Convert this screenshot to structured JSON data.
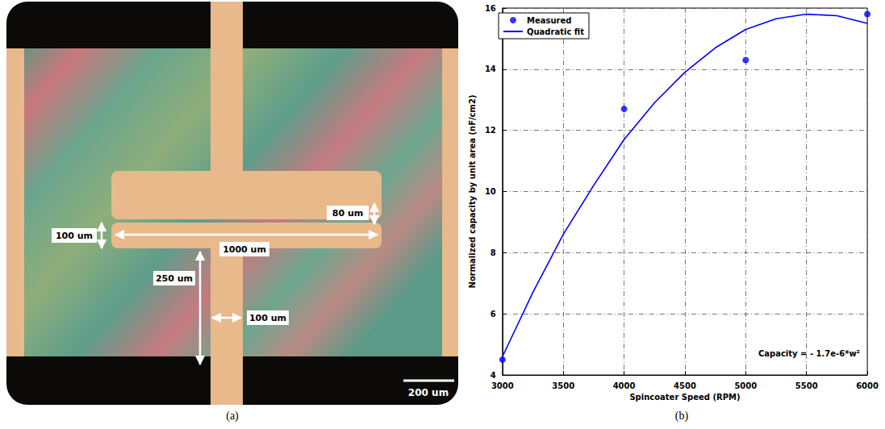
{
  "chart_data": {
    "type": "scatter",
    "x_label": "Spincoater Speed (RPM)",
    "y_label": "Normalized capacity by unit area (nF/cm2)",
    "annotation": "Capacity = - 1.7e-6*w²",
    "xlim": [
      3000,
      6000
    ],
    "xticks": [
      3000,
      3500,
      4000,
      4500,
      5000,
      5500,
      6000
    ],
    "ylim": [
      4,
      16
    ],
    "yticks": [
      4,
      6,
      8,
      10,
      12,
      14,
      16
    ],
    "grid": true,
    "legend": "upper left",
    "series": [
      {
        "name": "Measured",
        "type": "scatter",
        "color": "#0000ff",
        "marker": "circle",
        "x": [
          3000,
          4000,
          5000,
          6000
        ],
        "values": [
          4.5,
          12.7,
          14.3,
          15.8
        ]
      },
      {
        "name": "Quadratic fit",
        "type": "line",
        "color": "#0000ff",
        "line_style": "solid",
        "x": [
          3000,
          3250,
          3500,
          3750,
          4000,
          4250,
          4500,
          4750,
          5000,
          5250,
          5500,
          5750,
          6000
        ],
        "values": [
          4.6,
          6.7,
          8.6,
          10.2,
          11.7,
          12.9,
          13.9,
          14.7,
          15.3,
          15.65,
          15.8,
          15.75,
          15.5
        ]
      }
    ]
  },
  "micrograph": {
    "annotations": [
      "80 um",
      "100 um",
      "1000 um",
      "250 um",
      "100 um"
    ],
    "scale_bar": "200 um"
  },
  "captions": [
    "(a)",
    "(b)"
  ]
}
